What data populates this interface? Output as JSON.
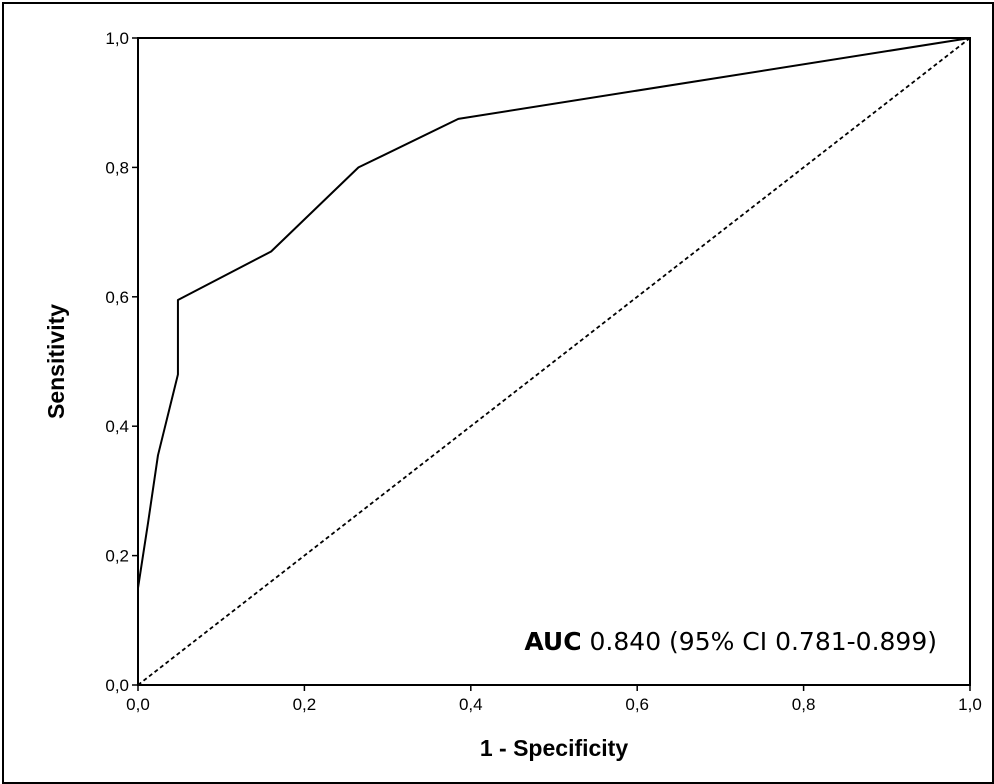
{
  "chart_data": {
    "type": "line",
    "title": "",
    "xlabel": "1 - Specificity",
    "ylabel": "Sensitivity",
    "xlim": [
      0,
      1
    ],
    "ylim": [
      0,
      1
    ],
    "x_ticks": [
      "0,0",
      "0,2",
      "0,4",
      "0,6",
      "0,8",
      "1,0"
    ],
    "y_ticks": [
      "0,0",
      "0,2",
      "0,4",
      "0,6",
      "0,8",
      "1,0"
    ],
    "grid": false,
    "legend": "none",
    "series": [
      {
        "style": "solid",
        "color": "#000000",
        "points": [
          [
            0.0,
            0.0
          ],
          [
            0.0,
            0.15
          ],
          [
            0.012,
            0.25
          ],
          [
            0.024,
            0.355
          ],
          [
            0.048,
            0.48
          ],
          [
            0.048,
            0.595
          ],
          [
            0.16,
            0.67
          ],
          [
            0.265,
            0.8
          ],
          [
            0.385,
            0.875
          ],
          [
            1.0,
            1.0
          ]
        ]
      },
      {
        "style": "dashed",
        "color": "#000000",
        "points": [
          [
            0.0,
            0.0
          ],
          [
            1.0,
            1.0
          ]
        ]
      }
    ],
    "annotation": {
      "bold": "AUC",
      "text": " 0.840 (95% CI 0.781-0.899)"
    }
  }
}
